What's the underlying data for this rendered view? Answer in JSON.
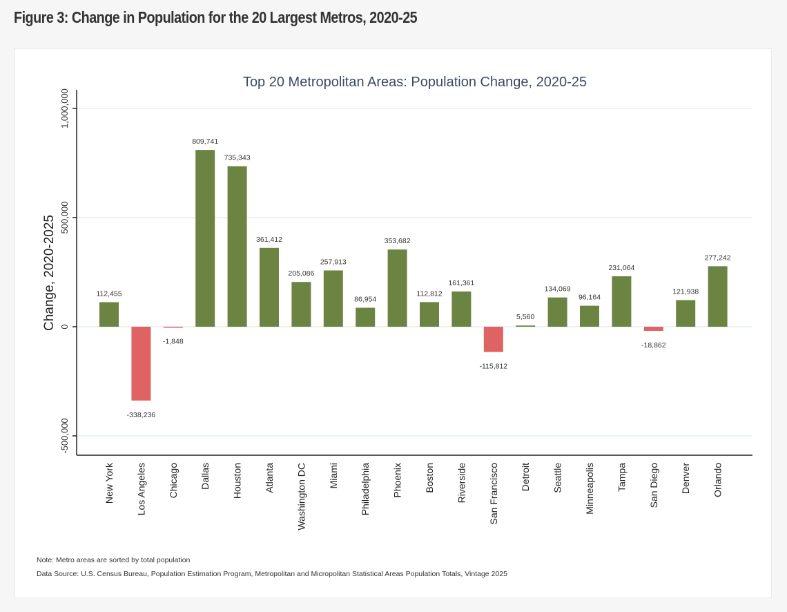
{
  "page": {
    "figure_title": "Figure 3: Change in Population for the 20 Largest Metros, 2020-25",
    "note": "Note: Metro areas are sorted by total population",
    "source": "Data Source: U.S. Census Bureau, Population Estimation Program, Metropolitan and Micropolitan Statistical Areas Population Totals, Vintage 2025"
  },
  "colors": {
    "positive": "#6b8442",
    "negative": "#e06363",
    "title": "#3c4a66",
    "gridline": "#e4eeee",
    "axis": "#222222",
    "text": "#333333"
  },
  "chart_data": {
    "type": "bar",
    "title": "Top 20 Metropolitan Areas: Population Change, 2020-25",
    "xlabel": "",
    "ylabel": "Change, 2020-2025",
    "ylim": [
      -590000,
      1090000
    ],
    "yticks": [
      -500000,
      0,
      500000,
      1000000
    ],
    "ytick_labels": [
      "-500,000",
      "0",
      "500,000",
      "1,000,000"
    ],
    "grid": true,
    "legend": "none",
    "categories": [
      "New York",
      "Los Angeles",
      "Chicago",
      "Dallas",
      "Houston",
      "Atlanta",
      "Washington DC",
      "Miami",
      "Philadelphia",
      "Phoenix",
      "Boston",
      "Riverside",
      "San Francisco",
      "Detroit",
      "Seattle",
      "Minneapolis",
      "Tampa",
      "San Diego",
      "Denver",
      "Orlando"
    ],
    "values": [
      112455,
      -338236,
      -1848,
      809741,
      735343,
      361412,
      205086,
      257913,
      86954,
      353682,
      112812,
      161361,
      -115812,
      5560,
      134069,
      96164,
      231064,
      -18862,
      121938,
      277242
    ],
    "value_labels": [
      "112,455",
      "-338,236",
      "-1,848",
      "809,741",
      "735,343",
      "361,412",
      "205,086",
      "257,913",
      "86,954",
      "353,682",
      "112,812",
      "161,361",
      "-115,812",
      "5,560",
      "134,069",
      "96,164",
      "231,064",
      "-18,862",
      "121,938",
      "277,242"
    ]
  }
}
